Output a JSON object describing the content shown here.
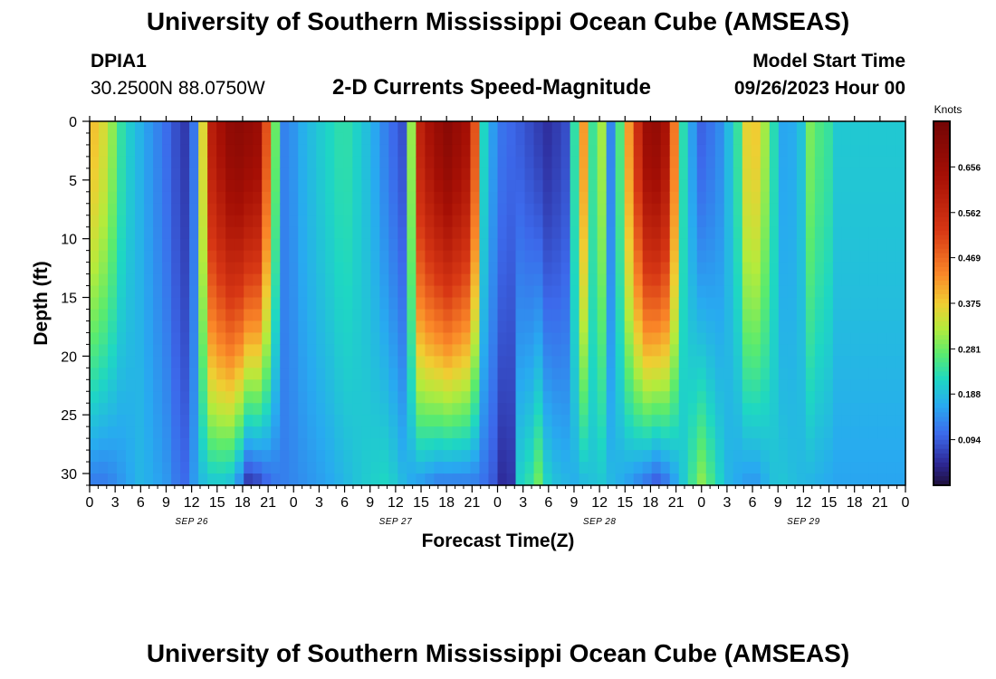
{
  "header": {
    "title": "University of Southern Mississippi Ocean Cube (AMSEAS)",
    "station_id": "DPIA1",
    "station_coords": "30.2500N  88.0750W",
    "chart_title": "2-D Currents Speed-Magnitude",
    "model_start_label": "Model Start Time",
    "model_start_value": "09/26/2023 Hour 00"
  },
  "footer": {
    "title": "University of Southern Mississippi Ocean Cube (AMSEAS)"
  },
  "chart_data": {
    "type": "heatmap",
    "title": "2-D Currents Speed-Magnitude",
    "xlabel": "Forecast Time(Z)",
    "ylabel": "Depth (ft)",
    "x_unit": "hours from 09/26/2023 00Z",
    "xlim": [
      0,
      96
    ],
    "ylim": [
      0,
      31
    ],
    "x_ticks": [
      0,
      3,
      6,
      9,
      12,
      15,
      18,
      21,
      24,
      27,
      30,
      33,
      36,
      39,
      42,
      45,
      48,
      51,
      54,
      57,
      60,
      63,
      66,
      69,
      72,
      75,
      78,
      81,
      84,
      87,
      90,
      93,
      96
    ],
    "x_tick_labels": [
      "0",
      "3",
      "6",
      "9",
      "12",
      "15",
      "18",
      "21",
      "0",
      "3",
      "6",
      "9",
      "12",
      "15",
      "18",
      "21",
      "0",
      "3",
      "6",
      "9",
      "12",
      "15",
      "18",
      "21",
      "0",
      "3",
      "6",
      "9",
      "12",
      "15",
      "18",
      "21",
      "0"
    ],
    "day_labels": [
      {
        "hour": 12,
        "label": "SEP 26"
      },
      {
        "hour": 36,
        "label": "SEP 27"
      },
      {
        "hour": 60,
        "label": "SEP 28"
      },
      {
        "hour": 84,
        "label": "SEP 29"
      }
    ],
    "y_ticks": [
      0,
      5,
      10,
      15,
      20,
      25,
      30
    ],
    "y_tick_labels": [
      "0",
      "5",
      "10",
      "15",
      "20",
      "25",
      "30"
    ],
    "colorbar": {
      "label": "Knots",
      "range": [
        0,
        0.75
      ],
      "ticks": [
        0.094,
        0.188,
        0.281,
        0.375,
        0.469,
        0.562,
        0.656
      ],
      "tick_labels": [
        "0.094",
        "0.188",
        "0.281",
        "0.375",
        "0.469",
        "0.562",
        "0.656"
      ]
    },
    "surface_speed_by_hour": [
      [
        0,
        0.4
      ],
      [
        2,
        0.34
      ],
      [
        4,
        0.22
      ],
      [
        7,
        0.15
      ],
      [
        9,
        0.11
      ],
      [
        11,
        0.06
      ],
      [
        12,
        0.07
      ],
      [
        13,
        0.25
      ],
      [
        14,
        0.58
      ],
      [
        17,
        0.7
      ],
      [
        20,
        0.66
      ],
      [
        22,
        0.25
      ],
      [
        23,
        0.12
      ],
      [
        25,
        0.17
      ],
      [
        27,
        0.2
      ],
      [
        30,
        0.24
      ],
      [
        33,
        0.18
      ],
      [
        35,
        0.12
      ],
      [
        37,
        0.08
      ],
      [
        39,
        0.6
      ],
      [
        42,
        0.7
      ],
      [
        45,
        0.62
      ],
      [
        46,
        0.24
      ],
      [
        48,
        0.12
      ],
      [
        51,
        0.09
      ],
      [
        54,
        0.05
      ],
      [
        56,
        0.08
      ],
      [
        57,
        0.22
      ],
      [
        58,
        0.45
      ],
      [
        59,
        0.21
      ],
      [
        60,
        0.39
      ],
      [
        61,
        0.1
      ],
      [
        62,
        0.2
      ],
      [
        64,
        0.5
      ],
      [
        66,
        0.7
      ],
      [
        68,
        0.62
      ],
      [
        70,
        0.2
      ],
      [
        72,
        0.1
      ],
      [
        74,
        0.13
      ],
      [
        75,
        0.18
      ],
      [
        76,
        0.2
      ],
      [
        77,
        0.35
      ],
      [
        78,
        0.4
      ],
      [
        80,
        0.28
      ],
      [
        81,
        0.18
      ],
      [
        82,
        0.15
      ],
      [
        84,
        0.2
      ],
      [
        85,
        0.31
      ],
      [
        86,
        0.25
      ],
      [
        87,
        0.24
      ],
      [
        88,
        0.2
      ]
    ],
    "bottom_speed_by_hour": [
      [
        0,
        0.12
      ],
      [
        2,
        0.12
      ],
      [
        4,
        0.15
      ],
      [
        6,
        0.18
      ],
      [
        9,
        0.15
      ],
      [
        11,
        0.1
      ],
      [
        13,
        0.18
      ],
      [
        15,
        0.2
      ],
      [
        17,
        0.18
      ],
      [
        18,
        0.1
      ],
      [
        19,
        0.03
      ],
      [
        20,
        0.08
      ],
      [
        22,
        0.12
      ],
      [
        25,
        0.14
      ],
      [
        28,
        0.16
      ],
      [
        32,
        0.2
      ],
      [
        35,
        0.22
      ],
      [
        38,
        0.16
      ],
      [
        41,
        0.12
      ],
      [
        43,
        0.12
      ],
      [
        46,
        0.12
      ],
      [
        48,
        0.08
      ],
      [
        49,
        0.02
      ],
      [
        50,
        0.08
      ],
      [
        51,
        0.28
      ],
      [
        52,
        0.22
      ],
      [
        53,
        0.3
      ],
      [
        54,
        0.2
      ],
      [
        57,
        0.17
      ],
      [
        60,
        0.2
      ],
      [
        63,
        0.16
      ],
      [
        65,
        0.12
      ],
      [
        67,
        0.08
      ],
      [
        69,
        0.16
      ],
      [
        72,
        0.3
      ],
      [
        75,
        0.18
      ],
      [
        78,
        0.14
      ],
      [
        81,
        0.2
      ],
      [
        84,
        0.18
      ],
      [
        88,
        0.16
      ]
    ]
  }
}
